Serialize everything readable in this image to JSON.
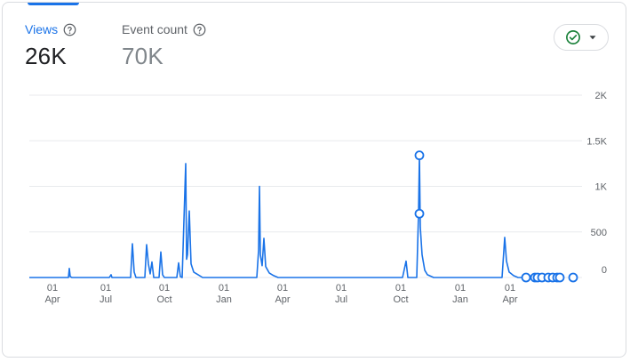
{
  "metrics": [
    {
      "label": "Views",
      "value": "26K"
    },
    {
      "label": "Event count",
      "value": "70K"
    }
  ],
  "colors": {
    "accent": "#1a73e8",
    "status": "#188038",
    "grid": "#e8eaed"
  },
  "icons": {
    "help": "help-circle-icon",
    "status": "check-circle-icon",
    "dropdown": "caret-down-icon"
  },
  "chart_data": {
    "type": "line",
    "y_ticks": [
      "2K",
      "1.5K",
      "1K",
      "500",
      "0"
    ],
    "y_tick_values": [
      2000,
      1500,
      1000,
      500,
      0
    ],
    "ylim": [
      0,
      2000
    ],
    "x_ticks": [
      {
        "day": "01",
        "month": "Apr"
      },
      {
        "day": "01",
        "month": "Jul"
      },
      {
        "day": "01",
        "month": "Oct"
      },
      {
        "day": "01",
        "month": "Jan"
      },
      {
        "day": "01",
        "month": "Apr"
      },
      {
        "day": "01",
        "month": "Jul"
      },
      {
        "day": "01",
        "month": "Oct"
      },
      {
        "day": "01",
        "month": "Jan"
      },
      {
        "day": "01",
        "month": "Apr"
      }
    ],
    "series": [
      {
        "values": [
          [
            0,
            0
          ],
          [
            44,
            0
          ],
          [
            45,
            100
          ],
          [
            46,
            10
          ],
          [
            48,
            0
          ],
          [
            90,
            0
          ],
          [
            92,
            30
          ],
          [
            93,
            0
          ],
          [
            114,
            0
          ],
          [
            116,
            370
          ],
          [
            118,
            60
          ],
          [
            120,
            0
          ],
          [
            130,
            0
          ],
          [
            132,
            360
          ],
          [
            134,
            150
          ],
          [
            136,
            40
          ],
          [
            138,
            170
          ],
          [
            140,
            0
          ],
          [
            146,
            0
          ],
          [
            148,
            280
          ],
          [
            150,
            30
          ],
          [
            152,
            0
          ],
          [
            166,
            0
          ],
          [
            168,
            160
          ],
          [
            170,
            10
          ],
          [
            172,
            0
          ],
          [
            176,
            1250
          ],
          [
            177,
            200
          ],
          [
            178,
            250
          ],
          [
            180,
            730
          ],
          [
            182,
            150
          ],
          [
            185,
            60
          ],
          [
            190,
            30
          ],
          [
            195,
            0
          ],
          [
            256,
            0
          ],
          [
            258,
            300
          ],
          [
            259,
            1000
          ],
          [
            260,
            250
          ],
          [
            262,
            130
          ],
          [
            264,
            430
          ],
          [
            266,
            120
          ],
          [
            270,
            50
          ],
          [
            275,
            20
          ],
          [
            280,
            0
          ],
          [
            420,
            0
          ],
          [
            424,
            180
          ],
          [
            426,
            0
          ],
          [
            436,
            0
          ],
          [
            438,
            700
          ],
          [
            439,
            1340
          ],
          [
            440,
            550
          ],
          [
            442,
            250
          ],
          [
            445,
            80
          ],
          [
            448,
            30
          ],
          [
            455,
            0
          ],
          [
            532,
            0
          ],
          [
            535,
            440
          ],
          [
            537,
            180
          ],
          [
            540,
            60
          ],
          [
            545,
            20
          ],
          [
            550,
            0
          ],
          [
            570,
            0
          ],
          [
            590,
            0
          ]
        ],
        "markers": [
          [
            439,
            1340
          ],
          [
            439,
            700
          ],
          [
            559,
            0
          ],
          [
            569,
            0
          ],
          [
            572,
            0
          ],
          [
            577,
            0
          ],
          [
            584,
            0
          ],
          [
            589,
            0
          ],
          [
            594,
            0
          ],
          [
            597,
            0
          ],
          [
            612,
            0
          ]
        ]
      }
    ]
  }
}
